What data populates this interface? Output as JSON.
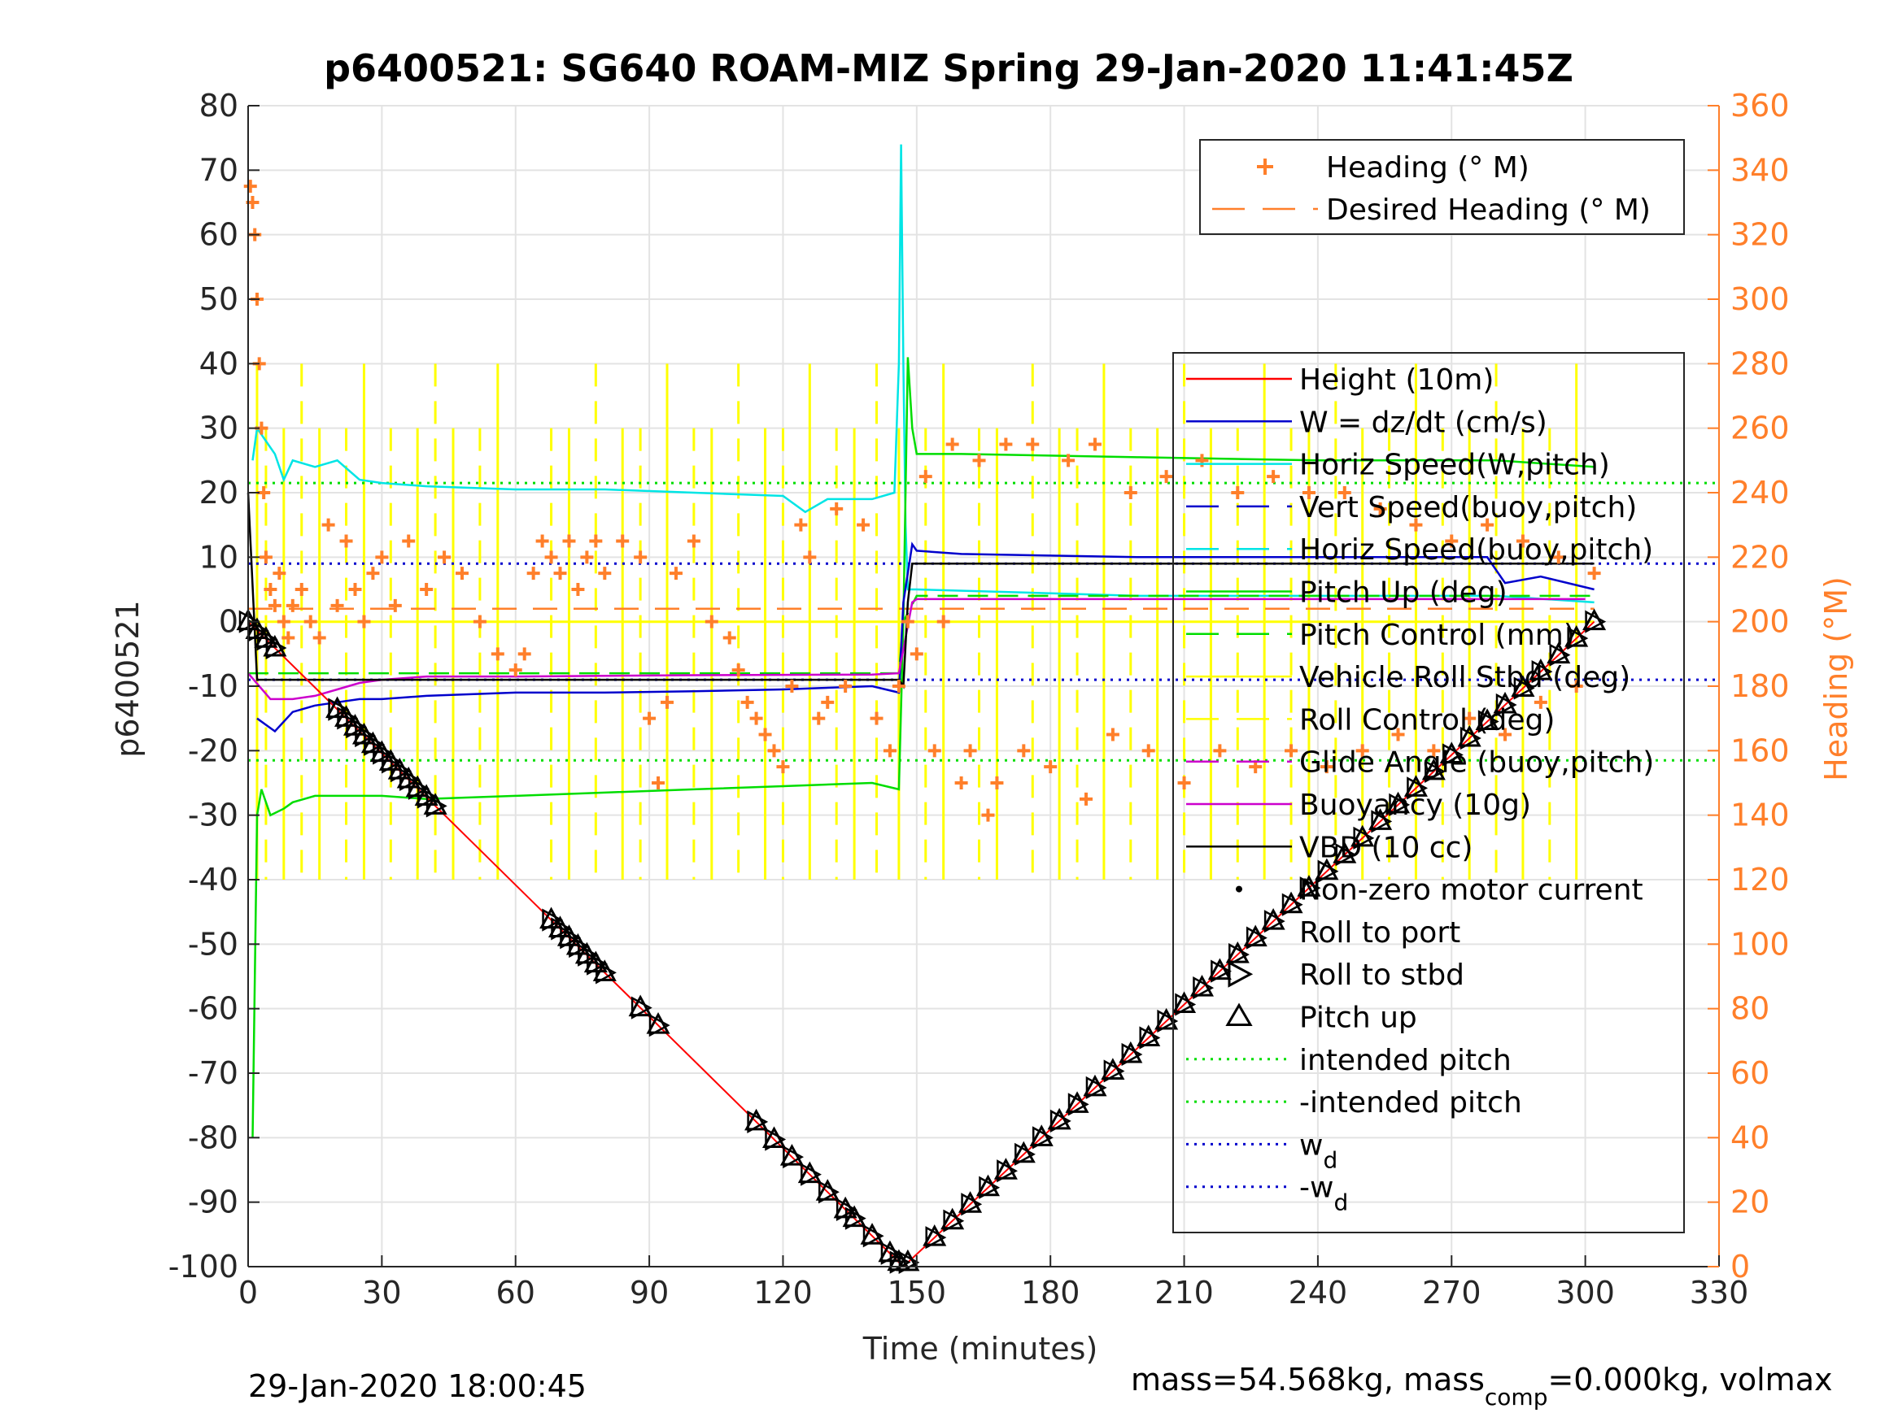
{
  "chart_data": {
    "type": "line",
    "title": "p6400521: SG640 ROAM-MIZ Spring 29-Jan-2020 11:41:45Z",
    "xlabel": "Time (minutes)",
    "ylabel_left": "p6400521",
    "ylabel_right": "Heading (°M)",
    "xlim": [
      0,
      330
    ],
    "ylim_left": [
      -100,
      80
    ],
    "ylim_right": [
      0,
      360
    ],
    "x_ticks": [
      0,
      30,
      60,
      90,
      120,
      150,
      180,
      210,
      240,
      270,
      300,
      330
    ],
    "y_ticks_left": [
      80,
      70,
      60,
      50,
      40,
      30,
      20,
      10,
      0,
      -10,
      -20,
      -30,
      -40,
      -50,
      -60,
      -70,
      -80,
      -90,
      -100
    ],
    "y_ticks_right": [
      360,
      340,
      320,
      300,
      280,
      260,
      240,
      220,
      200,
      180,
      160,
      140,
      120,
      100,
      80,
      60,
      40,
      20,
      0
    ],
    "grid": true,
    "footer_left": "29-Jan-2020 18:00:45",
    "footer_right_pre": "mass=54.568kg, mass",
    "footer_right_sub": "comp",
    "footer_right_post": "=0.000kg, volmax",
    "colors": {
      "height": "#ff0000",
      "w": "#0000cc",
      "horiz_speed": "#00e5e5",
      "pitch": "#00dd00",
      "roll": "#ffff00",
      "heading": "#ff7f2a",
      "buoyancy": "#cc00cc",
      "vbd": "#000000",
      "right_axis": "#ff7f2a",
      "grid": "#e3e3e3"
    },
    "legend_heading": [
      {
        "label": "Heading (° M)",
        "style": "plus",
        "color": "#ff7f2a"
      },
      {
        "label": "Desired Heading (° M)",
        "style": "dash",
        "color": "#ff7f2a"
      }
    ],
    "legend_main": [
      {
        "label": "Height (10m)",
        "style": "line",
        "color": "#ff0000"
      },
      {
        "label": "W = dz/dt (cm/s)",
        "style": "line",
        "color": "#0000cc"
      },
      {
        "label": "Horiz Speed(W,pitch)",
        "style": "line",
        "color": "#00e5e5"
      },
      {
        "label": "Vert Speed(buoy,pitch)",
        "style": "dash",
        "color": "#0000cc"
      },
      {
        "label": "Horiz Speed(buoy,pitch)",
        "style": "dash",
        "color": "#00e5e5"
      },
      {
        "label": "Pitch Up (deg)",
        "style": "line",
        "color": "#00dd00"
      },
      {
        "label": "Pitch Control (mm)",
        "style": "dash",
        "color": "#00dd00"
      },
      {
        "label": "Vehicle Roll Stbd (deg)",
        "style": "line",
        "color": "#ffff00"
      },
      {
        "label": "Roll Control (deg)",
        "style": "dash",
        "color": "#ffff00"
      },
      {
        "label": "Glide Angle (buoy,pitch)",
        "style": "dash",
        "color": "#cc00cc"
      },
      {
        "label": "Buoyancy (10g)",
        "style": "line",
        "color": "#cc00cc"
      },
      {
        "label": "VBD (10 cc)",
        "style": "line",
        "color": "#000000"
      },
      {
        "label": "Non-zero motor current",
        "style": "dot",
        "color": "#000000"
      },
      {
        "label": "Roll to port",
        "style": "none",
        "color": "#000000"
      },
      {
        "label": "Roll to stbd",
        "style": "tri-right",
        "color": "#000000"
      },
      {
        "label": "Pitch up",
        "style": "tri-up",
        "color": "#000000"
      },
      {
        "label": "intended pitch",
        "style": "dotted",
        "color": "#00dd00"
      },
      {
        "label": "-intended pitch",
        "style": "dotted",
        "color": "#00dd00"
      },
      {
        "label": "w",
        "sub": "d",
        "style": "dotted",
        "color": "#0000cc"
      },
      {
        "label": "-w",
        "sub": "d",
        "style": "dotted",
        "color": "#0000cc"
      }
    ],
    "series": {
      "height_10m": {
        "x": [
          0,
          147,
          302
        ],
        "y": [
          0,
          -100,
          0
        ]
      },
      "vbd_10cc": {
        "x": [
          0,
          2,
          146,
          147,
          148,
          149,
          150,
          280,
          302
        ],
        "y": [
          20,
          -9,
          -9,
          -10,
          3,
          9,
          9,
          9,
          9
        ]
      },
      "buoyancy_10g": {
        "x": [
          0,
          5,
          10,
          15,
          20,
          25,
          30,
          40,
          60,
          100,
          140,
          146,
          149,
          150,
          200,
          260,
          300
        ],
        "y": [
          -8,
          -12,
          -12,
          -11.5,
          -10.5,
          -9.5,
          -9,
          -8.5,
          -8.5,
          -8.3,
          -8.2,
          -8,
          3,
          3.5,
          3.5,
          3.5,
          3.5
        ]
      },
      "w_cm_s": {
        "x": [
          2,
          6,
          10,
          15,
          20,
          25,
          30,
          40,
          60,
          80,
          100,
          120,
          140,
          146,
          147,
          149,
          150,
          160,
          200,
          250,
          278,
          282,
          290,
          302
        ],
        "y": [
          -15,
          -17,
          -14,
          -13,
          -12.5,
          -12,
          -12,
          -11.5,
          -11,
          -11,
          -10.8,
          -10.5,
          -10,
          -11,
          3,
          12,
          11,
          10.5,
          10,
          10,
          10,
          6,
          7,
          5
        ]
      },
      "horiz_speed_w_pitch": {
        "x": [
          1,
          2,
          4,
          6,
          8,
          10,
          15,
          20,
          25,
          30,
          40,
          60,
          80,
          100,
          120,
          125,
          130,
          140,
          145,
          146,
          146.5,
          147,
          147.5,
          148,
          150,
          200,
          240,
          280,
          302
        ],
        "y": [
          25,
          30,
          28,
          26,
          22,
          25,
          24,
          25,
          22,
          21.5,
          21,
          20.5,
          20.5,
          20,
          19.5,
          17,
          19,
          19,
          20,
          40,
          74,
          40,
          15,
          5,
          5,
          4,
          4,
          4,
          3
        ]
      },
      "pitch_up_deg": {
        "x": [
          1,
          2,
          3,
          5,
          8,
          10,
          15,
          20,
          30,
          40,
          60,
          80,
          100,
          120,
          140,
          146,
          147,
          148,
          149,
          150,
          160,
          200,
          240,
          280,
          302
        ],
        "y": [
          -80,
          -30,
          -26,
          -30,
          -29,
          -28,
          -27,
          -27,
          -27,
          -27.5,
          -27,
          -26.5,
          -26,
          -25.5,
          -25,
          -26,
          0,
          41,
          30,
          26,
          26,
          25.5,
          25,
          25,
          24
        ]
      },
      "pitch_control_mm": {
        "x": [
          0,
          146,
          147,
          150,
          302
        ],
        "y": [
          -8,
          -8,
          0,
          4,
          4
        ]
      },
      "intended_pitch": 21.5,
      "w_d": 9,
      "roll_spikes_x": [
        2,
        4,
        8,
        12,
        16,
        22,
        26,
        32,
        38,
        42,
        46,
        52,
        56,
        68,
        72,
        78,
        84,
        88,
        94,
        100,
        104,
        110,
        116,
        120,
        126,
        132,
        136,
        141,
        146,
        152,
        156,
        164,
        168,
        176,
        182,
        186,
        192,
        198,
        204,
        210,
        216,
        222,
        228,
        234,
        238,
        244,
        250,
        256,
        262,
        268,
        274,
        280,
        286,
        292,
        298
      ],
      "heading_desired_deg": 204,
      "heading_deg": {
        "x": [
          0.5,
          1,
          1.5,
          2,
          2.5,
          3,
          3.5,
          4,
          5,
          6,
          7,
          8,
          9,
          10,
          12,
          14,
          16,
          18,
          20,
          22,
          24,
          26,
          28,
          30,
          33,
          36,
          40,
          44,
          48,
          52,
          56,
          60,
          62,
          64,
          66,
          68,
          70,
          72,
          74,
          76,
          78,
          80,
          84,
          88,
          90,
          92,
          94,
          96,
          100,
          104,
          108,
          110,
          112,
          114,
          116,
          118,
          120,
          122,
          124,
          126,
          128,
          130,
          132,
          134,
          138,
          141,
          144,
          146,
          148,
          150,
          152,
          154,
          156,
          158,
          160,
          162,
          164,
          166,
          168,
          170,
          174,
          176,
          180,
          184,
          188,
          190,
          194,
          198,
          202,
          206,
          210,
          214,
          218,
          222,
          226,
          230,
          234,
          238,
          242,
          246,
          250,
          254,
          258,
          262,
          266,
          270,
          274,
          278,
          282,
          286,
          290,
          294,
          298,
          302
        ],
        "y": [
          335,
          330,
          320,
          300,
          280,
          260,
          240,
          220,
          210,
          205,
          215,
          200,
          195,
          205,
          210,
          200,
          195,
          230,
          205,
          225,
          210,
          200,
          215,
          220,
          205,
          225,
          210,
          220,
          215,
          200,
          190,
          185,
          190,
          215,
          225,
          220,
          215,
          225,
          210,
          220,
          225,
          215,
          225,
          220,
          170,
          150,
          175,
          215,
          225,
          200,
          195,
          185,
          175,
          170,
          165,
          160,
          155,
          180,
          230,
          220,
          170,
          175,
          235,
          180,
          230,
          170,
          160,
          180,
          200,
          190,
          245,
          160,
          200,
          255,
          150,
          160,
          250,
          140,
          150,
          255,
          160,
          255,
          155,
          250,
          145,
          255,
          165,
          240,
          160,
          245,
          150,
          250,
          160,
          240,
          155,
          245,
          160,
          240,
          155,
          240,
          160,
          235,
          165,
          230,
          160,
          225,
          170,
          230,
          165,
          225,
          175,
          220,
          180,
          215
        ]
      },
      "pitch_up_markers_x": [
        0,
        2,
        4,
        6,
        20,
        22,
        24,
        26,
        28,
        30,
        32,
        34,
        36,
        38,
        40,
        42,
        68,
        70,
        72,
        74,
        76,
        78,
        80,
        88,
        92,
        114,
        118,
        122,
        126,
        130,
        134,
        136,
        140,
        144,
        146,
        148,
        154,
        158,
        162,
        166,
        170,
        174,
        178,
        182,
        186,
        190,
        194,
        198,
        202,
        206,
        210,
        214,
        218,
        222,
        226,
        230,
        234,
        238,
        242,
        246,
        250,
        254,
        258,
        262,
        266,
        270,
        274,
        278,
        282,
        286,
        290,
        294,
        298,
        302
      ]
    }
  }
}
